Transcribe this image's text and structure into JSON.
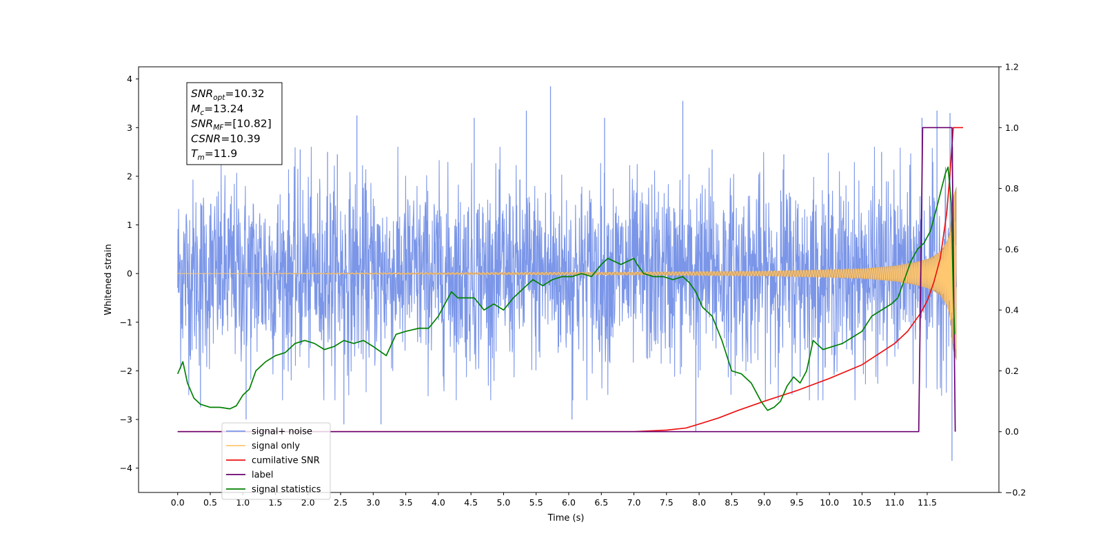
{
  "chart_data": {
    "type": "line",
    "xlabel": "Time (s)",
    "ylabel_left": "Whitened strain",
    "xlim": [
      -0.6,
      12.6
    ],
    "ylim_left": [
      -4.5,
      4.25
    ],
    "ylim_right": [
      -0.2,
      1.2
    ],
    "x_ticks": [
      "0.0",
      "0.5",
      "1.0",
      "1.5",
      "2.0",
      "2.5",
      "3.0",
      "3.5",
      "4.0",
      "4.5",
      "5.0",
      "5.5",
      "6.0",
      "6.5",
      "7.0",
      "7.5",
      "8.0",
      "8.5",
      "9.0",
      "9.5",
      "10.0",
      "10.5",
      "11.0",
      "11.5"
    ],
    "y_ticks_left": [
      "−4",
      "−3",
      "−2",
      "−1",
      "0",
      "1",
      "2",
      "3",
      "4"
    ],
    "y_ticks_right": [
      "−0.2",
      "0.0",
      "0.2",
      "0.4",
      "0.6",
      "0.8",
      "1.0",
      "1.2"
    ],
    "annotation": [
      {
        "base": "SNR",
        "sub": "opt",
        "value": "=10.32"
      },
      {
        "base": "M",
        "sub": "c",
        "value": "=13.24"
      },
      {
        "base": "SNR",
        "sub": "MF",
        "value": "=[10.82]"
      },
      {
        "base": "CSNR",
        "sub": "",
        "value": "=10.39"
      },
      {
        "base": "T",
        "sub": "m",
        "value": "=11.9"
      }
    ],
    "legend": {
      "position": "lower-left",
      "entries": [
        {
          "label": "signal+ noise",
          "color": "#7b96e8"
        },
        {
          "label": "signal only",
          "color": "#ffc870"
        },
        {
          "label": "cumilative SNR",
          "color": "#ee1010"
        },
        {
          "label": "label",
          "color": "#6a0070"
        },
        {
          "label": "signal statistics",
          "color": "#008000"
        }
      ]
    },
    "series": [
      {
        "name": "signal+ noise",
        "axis": "left",
        "color": "#7b96e8",
        "x_range": [
          0.0,
          11.95
        ],
        "typical_range": [
          -2.0,
          2.0
        ],
        "spikes": [
          [
            1.88,
            2.55
          ],
          [
            2.3,
            2.5
          ],
          [
            2.45,
            2.45
          ],
          [
            2.75,
            3.25
          ],
          [
            4.55,
            3.2
          ],
          [
            5.35,
            3.35
          ],
          [
            5.72,
            3.85
          ],
          [
            6.55,
            3.2
          ],
          [
            7.75,
            3.55
          ],
          [
            8.2,
            2.55
          ],
          [
            9.3,
            2.45
          ],
          [
            10.8,
            2.5
          ],
          [
            11.42,
            3.2
          ],
          [
            11.65,
            3.35
          ],
          [
            11.85,
            3.3
          ],
          [
            0.35,
            -2.75
          ],
          [
            1.05,
            -3.0
          ],
          [
            2.55,
            -3.1
          ],
          [
            3.12,
            -3.1
          ],
          [
            6.05,
            -3.0
          ],
          [
            7.95,
            -3.25
          ],
          [
            11.88,
            -3.85
          ]
        ]
      },
      {
        "name": "signal only",
        "axis": "left",
        "color": "#ffc870",
        "fill": "#c8a178",
        "t_merge": 11.9,
        "amplitude_at": [
          [
            0.0,
            0.0
          ],
          [
            7.0,
            0.03
          ],
          [
            9.0,
            0.05
          ],
          [
            10.0,
            0.08
          ],
          [
            10.5,
            0.1
          ],
          [
            11.0,
            0.16
          ],
          [
            11.3,
            0.23
          ],
          [
            11.5,
            0.3
          ],
          [
            11.6,
            0.36
          ],
          [
            11.7,
            0.45
          ],
          [
            11.8,
            0.65
          ],
          [
            11.85,
            0.9
          ],
          [
            11.9,
            1.6
          ],
          [
            11.95,
            1.8
          ]
        ]
      },
      {
        "name": "cumilative SNR",
        "axis": "right",
        "color": "#ee1010",
        "x": [
          0.0,
          7.0,
          7.5,
          7.8,
          8.0,
          8.3,
          8.6,
          9.0,
          9.5,
          10.0,
          10.5,
          11.0,
          11.2,
          11.4,
          11.5,
          11.6,
          11.7,
          11.8,
          11.85,
          11.9,
          11.95,
          12.05
        ],
        "y": [
          0.0,
          0.0,
          0.005,
          0.012,
          0.025,
          0.045,
          0.07,
          0.1,
          0.135,
          0.175,
          0.22,
          0.29,
          0.33,
          0.39,
          0.43,
          0.49,
          0.57,
          0.72,
          0.85,
          1.0,
          1.0,
          1.0
        ]
      },
      {
        "name": "label",
        "axis": "right",
        "color": "#6a0070",
        "x": [
          0.0,
          11.37,
          11.43,
          11.88,
          11.93
        ],
        "y": [
          0.0,
          0.0,
          1.0,
          1.0,
          0.0
        ]
      },
      {
        "name": "signal statistics",
        "axis": "right",
        "color": "#008000",
        "x": [
          0.0,
          0.08,
          0.15,
          0.25,
          0.35,
          0.5,
          0.65,
          0.8,
          0.9,
          1.0,
          1.1,
          1.2,
          1.35,
          1.5,
          1.65,
          1.8,
          1.95,
          2.1,
          2.25,
          2.4,
          2.55,
          2.7,
          2.85,
          3.0,
          3.2,
          3.35,
          3.5,
          3.7,
          3.85,
          4.0,
          4.1,
          4.2,
          4.3,
          4.45,
          4.55,
          4.7,
          4.85,
          5.0,
          5.15,
          5.3,
          5.45,
          5.6,
          5.75,
          5.9,
          6.05,
          6.2,
          6.35,
          6.5,
          6.6,
          6.7,
          6.8,
          6.9,
          7.0,
          7.05,
          7.15,
          7.3,
          7.45,
          7.6,
          7.75,
          7.85,
          7.95,
          8.05,
          8.2,
          8.35,
          8.5,
          8.65,
          8.8,
          8.95,
          9.05,
          9.15,
          9.25,
          9.35,
          9.45,
          9.55,
          9.65,
          9.75,
          9.9,
          10.05,
          10.2,
          10.35,
          10.5,
          10.65,
          10.8,
          10.95,
          11.05,
          11.15,
          11.25,
          11.35,
          11.45,
          11.55,
          11.65,
          11.72,
          11.78,
          11.82,
          11.87,
          11.9,
          11.92
        ],
        "y": [
          0.19,
          0.23,
          0.16,
          0.11,
          0.09,
          0.08,
          0.08,
          0.075,
          0.085,
          0.12,
          0.14,
          0.2,
          0.23,
          0.25,
          0.26,
          0.29,
          0.3,
          0.29,
          0.27,
          0.28,
          0.3,
          0.29,
          0.3,
          0.28,
          0.25,
          0.32,
          0.33,
          0.34,
          0.34,
          0.38,
          0.42,
          0.46,
          0.44,
          0.44,
          0.44,
          0.4,
          0.42,
          0.4,
          0.44,
          0.47,
          0.5,
          0.48,
          0.5,
          0.51,
          0.51,
          0.52,
          0.51,
          0.55,
          0.57,
          0.56,
          0.55,
          0.56,
          0.57,
          0.55,
          0.52,
          0.51,
          0.51,
          0.5,
          0.51,
          0.49,
          0.46,
          0.41,
          0.38,
          0.3,
          0.2,
          0.19,
          0.16,
          0.1,
          0.07,
          0.08,
          0.1,
          0.15,
          0.18,
          0.16,
          0.2,
          0.3,
          0.27,
          0.28,
          0.29,
          0.31,
          0.33,
          0.38,
          0.4,
          0.42,
          0.44,
          0.5,
          0.56,
          0.6,
          0.62,
          0.66,
          0.74,
          0.8,
          0.85,
          0.87,
          0.75,
          0.45,
          0.32
        ]
      }
    ]
  }
}
